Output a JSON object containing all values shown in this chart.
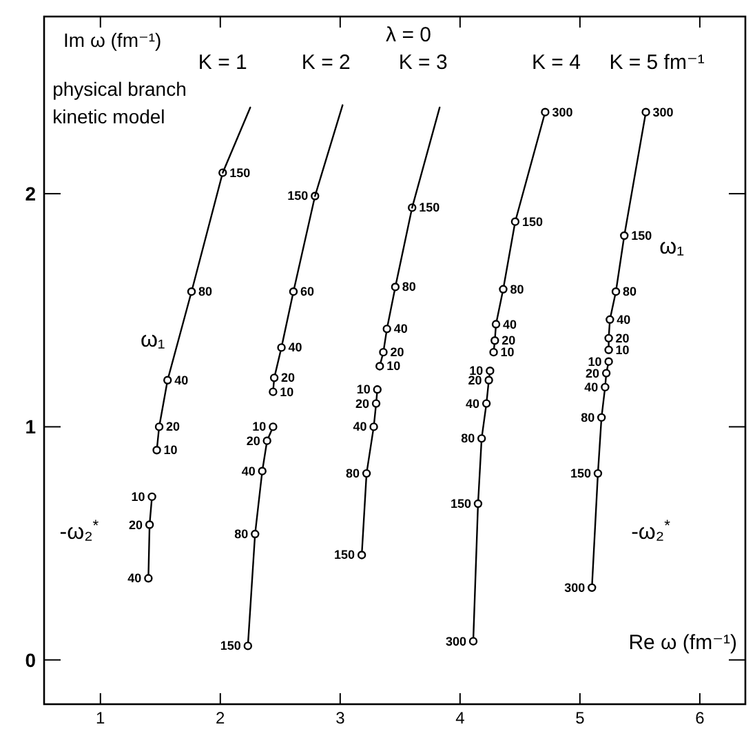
{
  "chart_data": {
    "type": "line",
    "title": "λ = 0",
    "xlabel": "Re ω (fm⁻¹)",
    "ylabel": "Im ω (fm⁻¹)",
    "xlim": [
      0.53,
      6.38
    ],
    "ylim": [
      -0.19,
      2.76
    ],
    "xticks": [
      1,
      2,
      3,
      4,
      5,
      6
    ],
    "yticks": [
      0,
      1,
      2
    ],
    "grid": false,
    "legend": "top",
    "marker": "circle",
    "annotations": [
      "physical branch",
      "kinetic model",
      "ω₁",
      "ω₁",
      "-ω₂$^{*}$",
      "-ω₂$^{*}$",
      {
        "text": "10",
        "x": 1.47,
        "y": 0.9
      },
      {
        "text": "20",
        "x": 1.49,
        "y": 1.0
      },
      {
        "text": "40",
        "x": 1.56,
        "y": 1.2
      },
      {
        "text": "80",
        "x": 1.76,
        "y": 1.58
      },
      {
        "text": "150",
        "x": 2.02,
        "y": 2.09
      },
      {
        "text": "10",
        "x": 1.43,
        "y": 0.7
      },
      {
        "text": "20",
        "x": 1.41,
        "y": 0.58
      },
      {
        "text": "40",
        "x": 1.4,
        "y": 0.35
      },
      {
        "text": "10",
        "x": 2.44,
        "y": 1.15
      },
      {
        "text": "20",
        "x": 2.45,
        "y": 1.21
      },
      {
        "text": "40",
        "x": 2.51,
        "y": 1.34
      },
      {
        "text": "60",
        "x": 2.61,
        "y": 1.58
      },
      {
        "text": "150",
        "x": 2.79,
        "y": 1.99
      },
      {
        "text": "10",
        "x": 2.44,
        "y": 1.0
      },
      {
        "text": "20",
        "x": 2.39,
        "y": 0.94
      },
      {
        "text": "40",
        "x": 2.35,
        "y": 0.81
      },
      {
        "text": "80",
        "x": 2.29,
        "y": 0.54
      },
      {
        "text": "150",
        "x": 2.23,
        "y": 0.06
      },
      {
        "text": "10",
        "x": 3.33,
        "y": 1.26
      },
      {
        "text": "20",
        "x": 3.36,
        "y": 1.32
      },
      {
        "text": "40",
        "x": 3.39,
        "y": 1.42
      },
      {
        "text": "80",
        "x": 3.46,
        "y": 1.6
      },
      {
        "text": "150",
        "x": 3.6,
        "y": 1.94
      },
      {
        "text": "10",
        "x": 3.31,
        "y": 1.16
      },
      {
        "text": "20",
        "x": 3.3,
        "y": 1.1
      },
      {
        "text": "40",
        "x": 3.28,
        "y": 1.0
      },
      {
        "text": "80",
        "x": 3.22,
        "y": 0.8
      },
      {
        "text": "150",
        "x": 3.18,
        "y": 0.45
      },
      {
        "text": "10",
        "x": 4.28,
        "y": 1.32
      },
      {
        "text": "20",
        "x": 4.29,
        "y": 1.37
      },
      {
        "text": "40",
        "x": 4.3,
        "y": 1.44
      },
      {
        "text": "80",
        "x": 4.36,
        "y": 1.59
      },
      {
        "text": "150",
        "x": 4.46,
        "y": 1.88
      },
      {
        "text": "300",
        "x": 4.71,
        "y": 2.35
      },
      {
        "text": "10",
        "x": 4.25,
        "y": 1.24
      },
      {
        "text": "20",
        "x": 4.24,
        "y": 1.2
      },
      {
        "text": "40",
        "x": 4.22,
        "y": 1.1
      },
      {
        "text": "80",
        "x": 4.18,
        "y": 0.95
      },
      {
        "text": "150",
        "x": 4.15,
        "y": 0.67
      },
      {
        "text": "300",
        "x": 4.11,
        "y": 0.08
      },
      {
        "text": "10",
        "x": 5.24,
        "y": 1.33
      },
      {
        "text": "20",
        "x": 5.24,
        "y": 1.38
      },
      {
        "text": "40",
        "x": 5.25,
        "y": 1.46
      },
      {
        "text": "80",
        "x": 5.3,
        "y": 1.58
      },
      {
        "text": "150",
        "x": 5.37,
        "y": 1.82
      },
      {
        "text": "300",
        "x": 5.55,
        "y": 2.35
      },
      {
        "text": "10",
        "x": 5.24,
        "y": 1.28
      },
      {
        "text": "20",
        "x": 5.22,
        "y": 1.23
      },
      {
        "text": "40",
        "x": 5.21,
        "y": 1.17
      },
      {
        "text": "80",
        "x": 5.18,
        "y": 1.04
      },
      {
        "text": "150",
        "x": 5.15,
        "y": 0.8
      },
      {
        "text": "300",
        "x": 5.1,
        "y": 0.31
      }
    ],
    "series": [
      {
        "name": "K = 1",
        "color": "#000000",
        "x": [
          1.47,
          1.49,
          1.56,
          1.76,
          2.02
        ],
        "values": [
          0.9,
          1.0,
          1.2,
          1.58,
          2.09
        ]
      },
      {
        "color": "#000000",
        "x": [
          1.43,
          1.41,
          1.4
        ],
        "values": [
          0.7,
          0.58,
          0.35
        ]
      },
      {
        "name": "K = 2",
        "color": "#000000",
        "x": [
          2.44,
          2.45,
          2.51,
          2.61,
          2.79
        ],
        "values": [
          1.15,
          1.21,
          1.34,
          1.58,
          1.99
        ]
      },
      {
        "color": "#000000",
        "x": [
          2.44,
          2.39,
          2.35,
          2.29,
          2.23
        ],
        "values": [
          1.0,
          0.94,
          0.81,
          0.54,
          0.06
        ]
      },
      {
        "name": "K = 3",
        "color": "#000000",
        "x": [
          3.33,
          3.36,
          3.39,
          3.46,
          3.6
        ],
        "values": [
          1.26,
          1.32,
          1.42,
          1.6,
          1.94
        ]
      },
      {
        "color": "#000000",
        "x": [
          3.31,
          3.3,
          3.28,
          3.22,
          3.18
        ],
        "values": [
          1.16,
          1.1,
          1.0,
          0.8,
          0.45
        ]
      },
      {
        "name": "K = 4",
        "color": "#000000",
        "x": [
          4.28,
          4.29,
          4.3,
          4.36,
          4.46,
          4.71
        ],
        "values": [
          1.32,
          1.37,
          1.44,
          1.59,
          1.88,
          2.35
        ]
      },
      {
        "color": "#000000",
        "x": [
          4.25,
          4.24,
          4.22,
          4.18,
          4.15,
          4.11
        ],
        "values": [
          1.24,
          1.2,
          1.1,
          0.95,
          0.67,
          0.08
        ]
      },
      {
        "name": "K = 5 fm⁻¹",
        "color": "#000000",
        "x": [
          5.24,
          5.24,
          5.25,
          5.3,
          5.37,
          5.55
        ],
        "values": [
          1.33,
          1.38,
          1.46,
          1.58,
          1.82,
          2.35
        ]
      },
      {
        "color": "#000000",
        "x": [
          5.24,
          5.22,
          5.21,
          5.18,
          5.15,
          5.1
        ],
        "values": [
          1.28,
          1.23,
          1.17,
          1.04,
          0.8,
          0.31
        ]
      },
      {
        "marker": "none",
        "color": "#000000",
        "x": [
          2.02,
          2.25
        ],
        "values": [
          2.09,
          2.37
        ]
      },
      {
        "marker": "none",
        "color": "#000000",
        "x": [
          2.79,
          3.02
        ],
        "values": [
          1.99,
          2.38
        ]
      },
      {
        "marker": "none",
        "color": "#000000",
        "x": [
          3.6,
          3.83
        ],
        "values": [
          1.94,
          2.37
        ]
      }
    ]
  }
}
